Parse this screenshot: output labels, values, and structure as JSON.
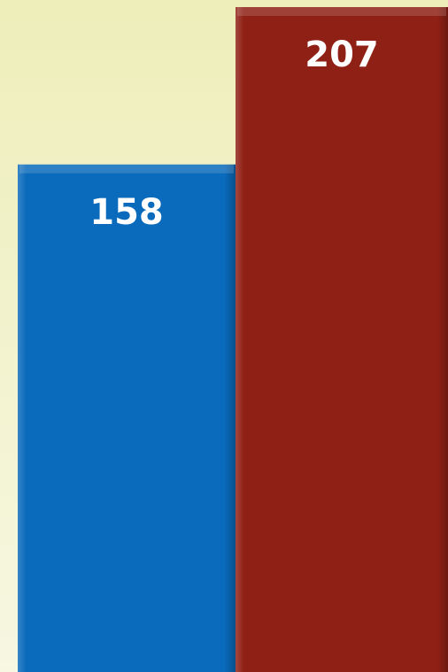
{
  "chart_data": {
    "type": "bar",
    "values": [
      158,
      207
    ],
    "colors": [
      "#0a6abb",
      "#8f2015"
    ]
  }
}
